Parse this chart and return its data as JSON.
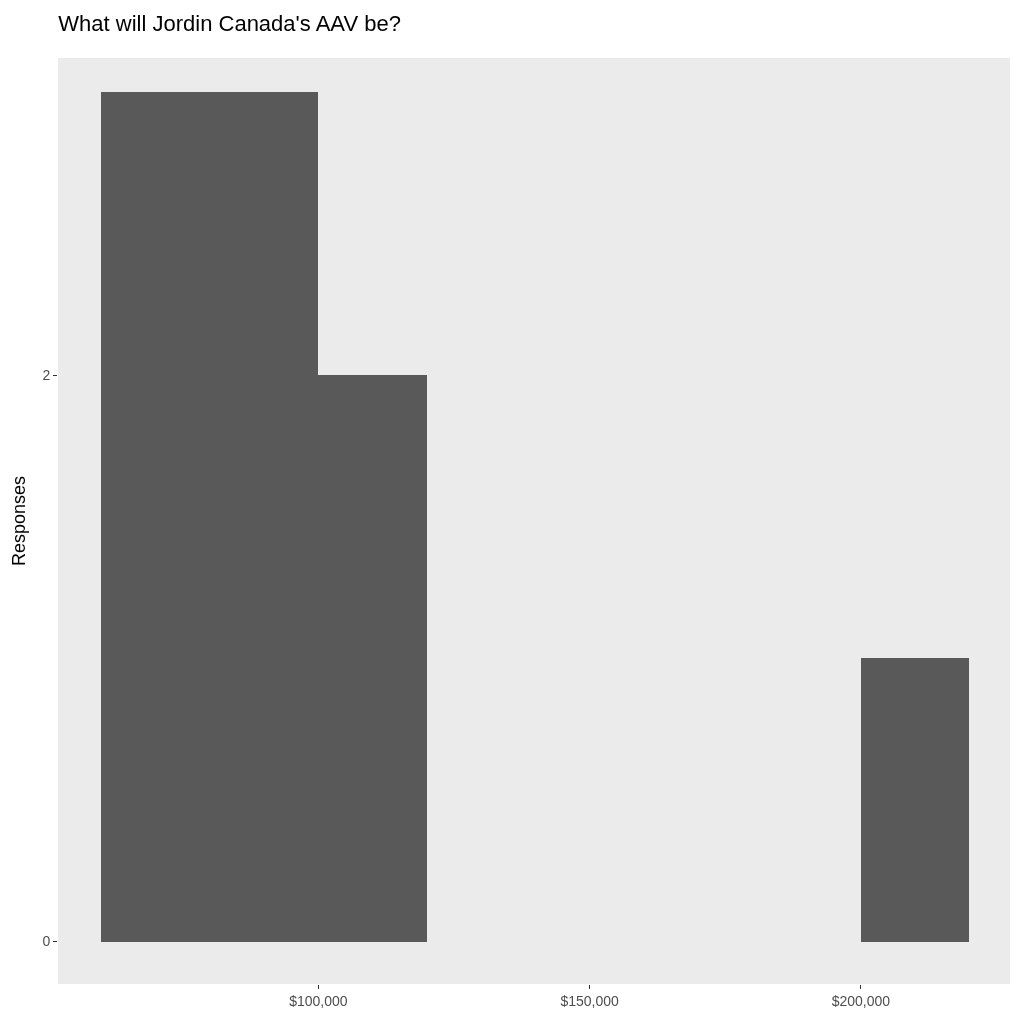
{
  "chart_data": {
    "type": "histogram",
    "title": "What will Jordin Canada's AAV be?",
    "ylabel": "Responses",
    "bins": [
      60000,
      80000,
      100000,
      120000,
      140000,
      160000,
      180000,
      200000,
      220000
    ],
    "values": [
      3,
      3,
      2,
      0,
      0,
      0,
      0,
      1
    ],
    "color": "#595959",
    "xlim": [
      52000,
      227500
    ],
    "xticks": [
      {
        "value": 100000,
        "label": "$100,000"
      },
      {
        "value": 150000,
        "label": "$150,000"
      },
      {
        "value": 200000,
        "label": "$200,000"
      }
    ],
    "ylim": [
      -0.15,
      3.12
    ],
    "yticks": [
      0,
      2
    ],
    "grid": false,
    "legend": false
  }
}
